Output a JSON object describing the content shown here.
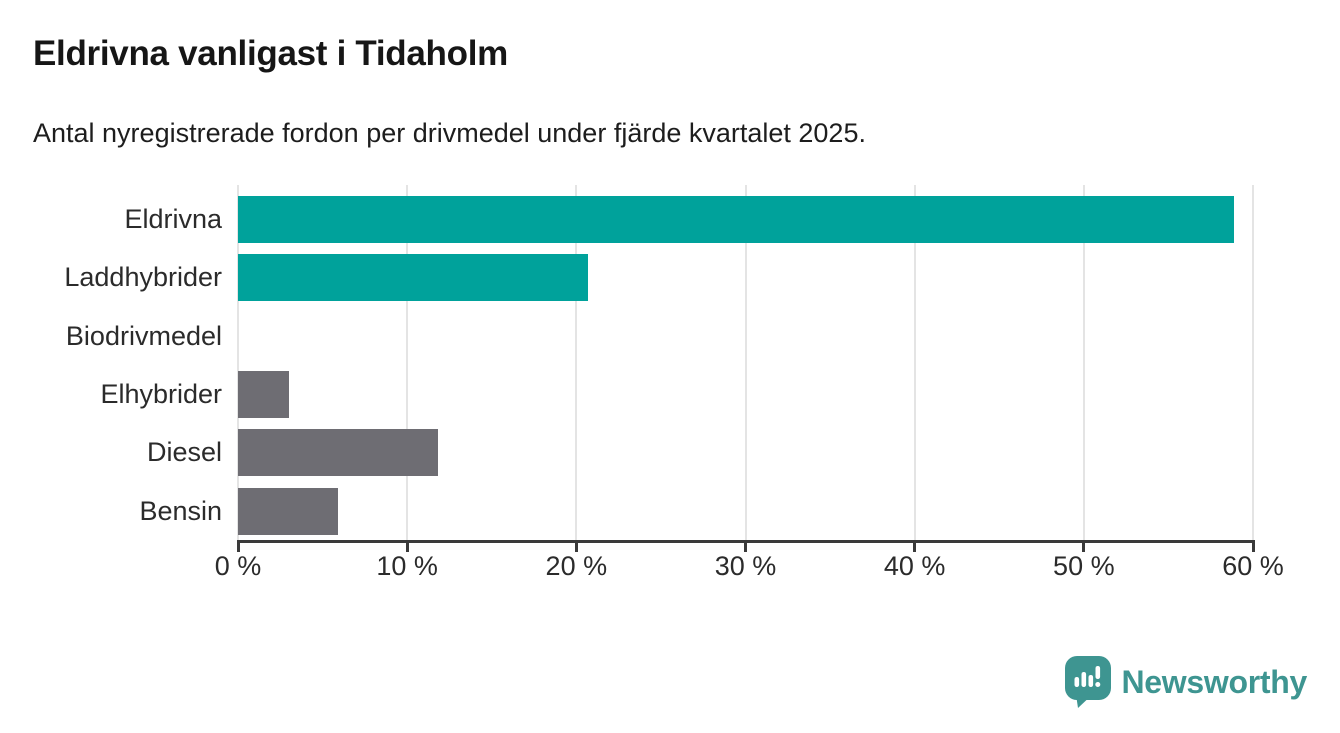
{
  "header": {
    "title": "Eldrivna vanligast i Tidaholm",
    "subtitle": "Antal nyregistrerade fordon per drivmedel under fjärde kvartalet 2025."
  },
  "chart_data": {
    "type": "bar",
    "orientation": "horizontal",
    "title": "Eldrivna vanligast i Tidaholm",
    "subtitle": "Antal nyregistrerade fordon per drivmedel under fjärde kvartalet 2025.",
    "categories": [
      "Eldrivna",
      "Laddhybrider",
      "Biodrivmedel",
      "Elhybrider",
      "Diesel",
      "Bensin"
    ],
    "values": [
      58.9,
      20.7,
      0,
      3.0,
      11.8,
      5.9
    ],
    "unit": "%",
    "xlim": [
      0,
      60
    ],
    "x_ticks": [
      0,
      10,
      20,
      30,
      40,
      50,
      60
    ],
    "x_tick_labels": [
      "0 %",
      "10 %",
      "20 %",
      "30 %",
      "40 %",
      "50 %",
      "60 %"
    ],
    "grid": true,
    "legend": false,
    "bar_colors": [
      "#00a29b",
      "#00a29b",
      "#6e6d73",
      "#6e6d73",
      "#6e6d73",
      "#6e6d73"
    ],
    "highlight_color": "#00a29b",
    "default_color": "#6e6d73",
    "axis_color": "#3a3a3a",
    "gridline_color": "#e4e4e4",
    "label_color": "#2b2b2b"
  },
  "branding": {
    "logo_text": "Newsworthy",
    "logo_color": "#3e9591",
    "logo_icon": "speech-bubble-bar-chart-icon"
  }
}
